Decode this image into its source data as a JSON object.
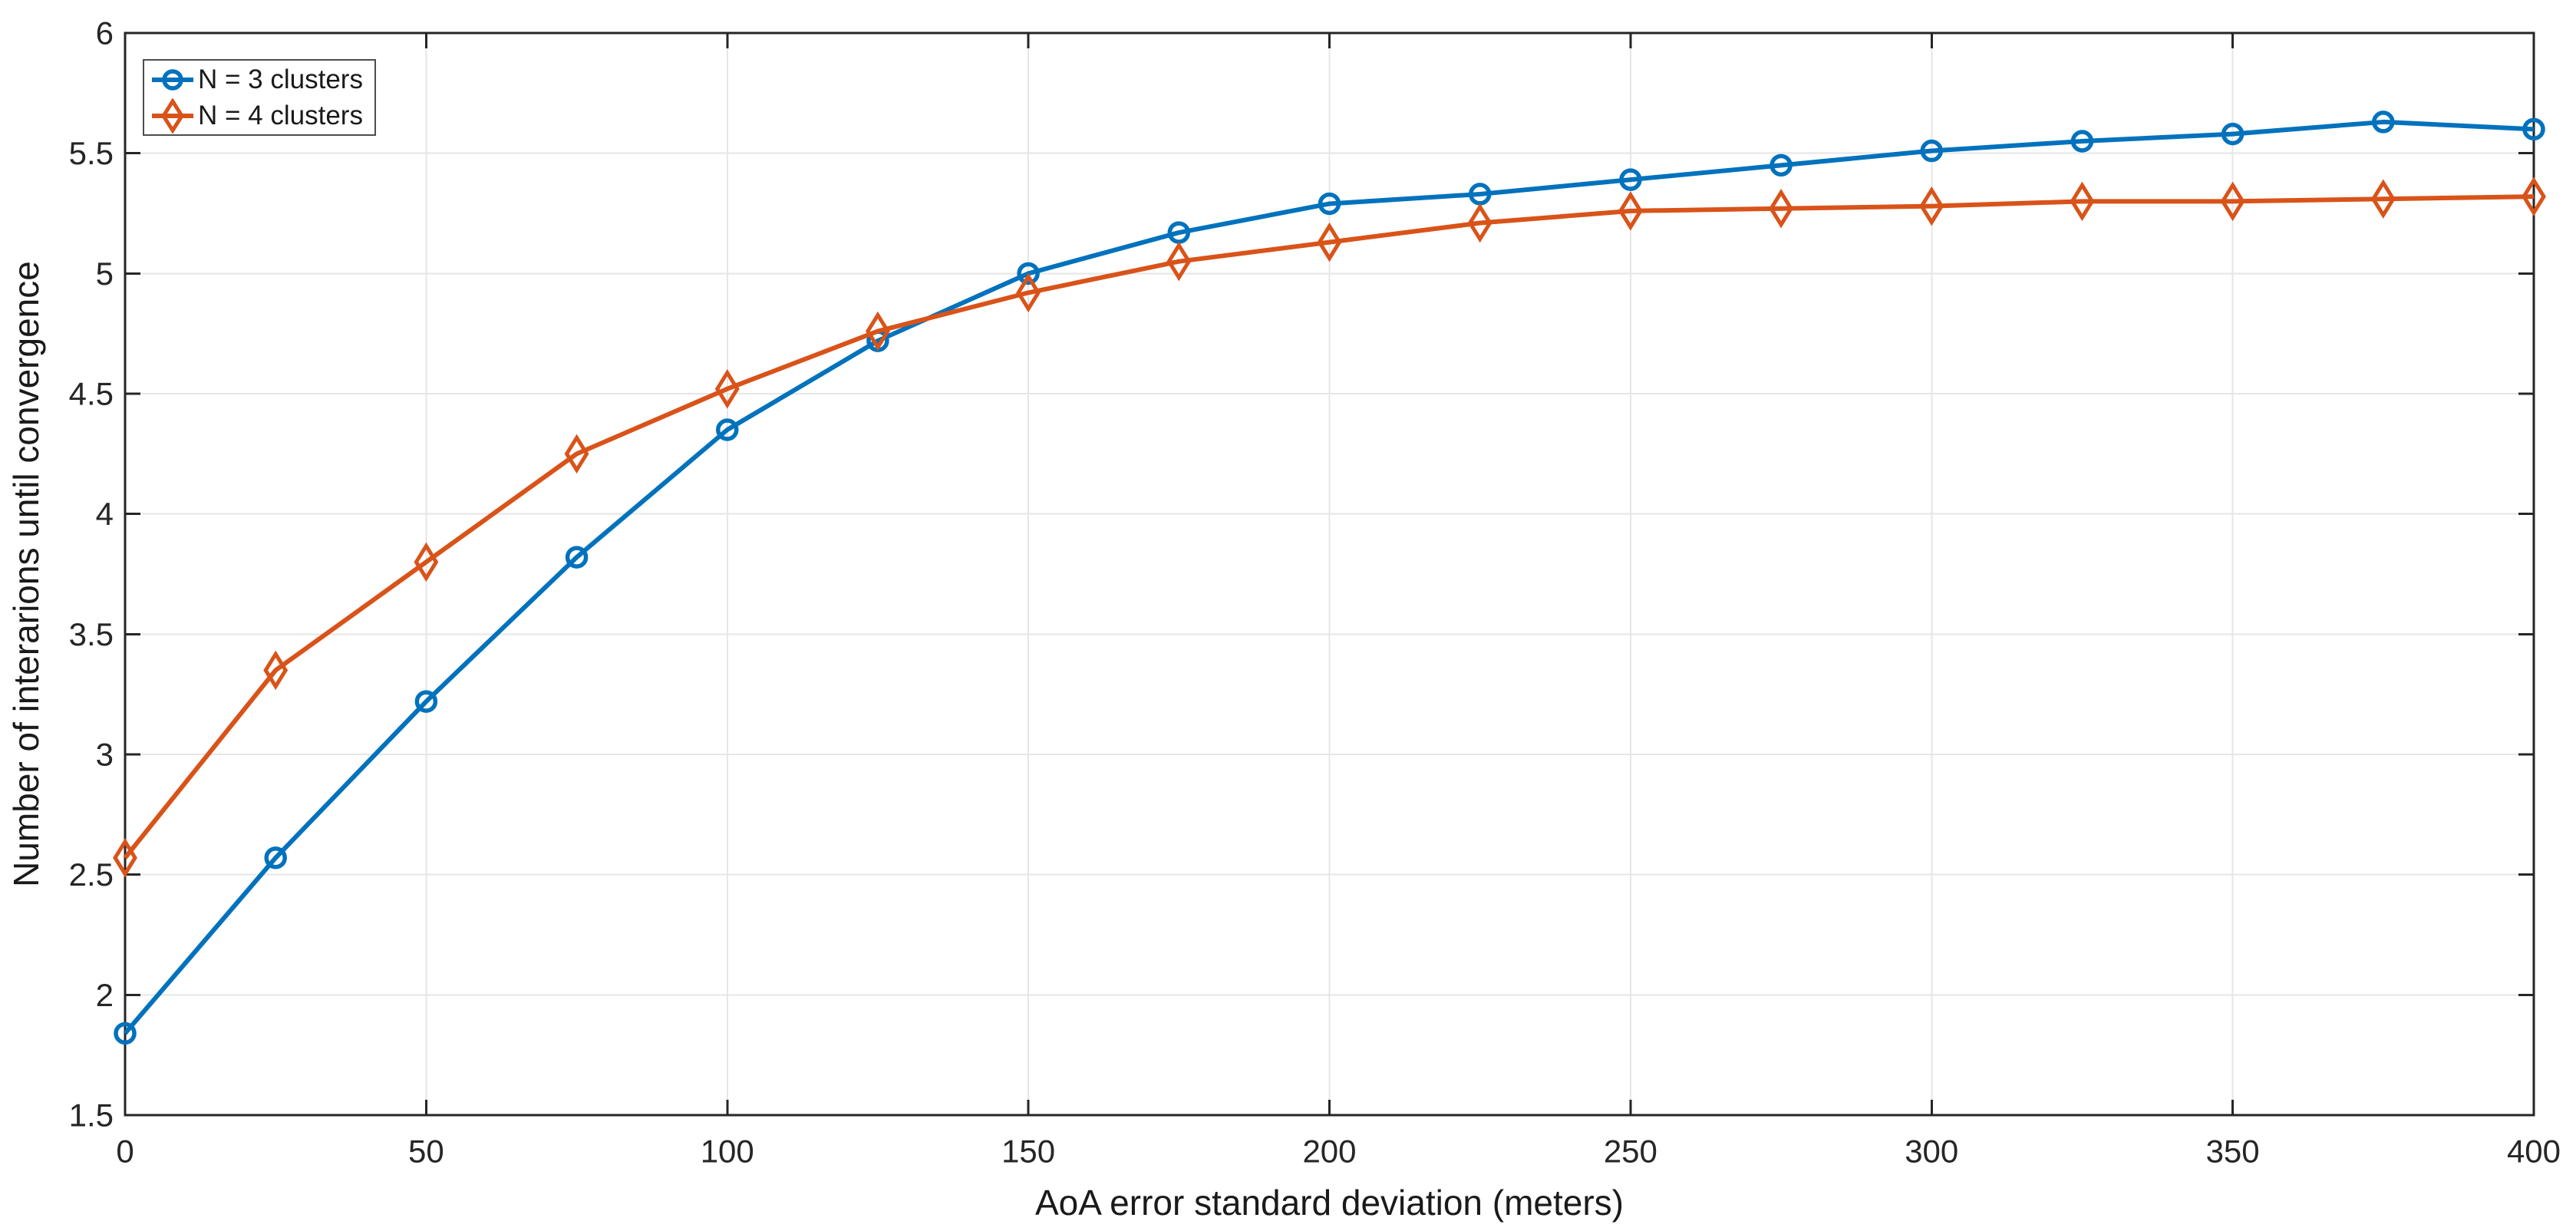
{
  "chart_data": {
    "type": "line",
    "title": "",
    "xlabel": "AoA error standard deviation (meters)",
    "ylabel": "Number of interarions until convergence",
    "xlim": [
      0,
      400
    ],
    "ylim": [
      1.5,
      6
    ],
    "grid": true,
    "legend_position": "top-left",
    "x_ticks": [
      0,
      50,
      100,
      150,
      200,
      250,
      300,
      350,
      400
    ],
    "x_tick_labels": [
      "0",
      "50",
      "100",
      "150",
      "200",
      "250",
      "300",
      "350",
      "400"
    ],
    "y_ticks": [
      1.5,
      2,
      2.5,
      3,
      3.5,
      4,
      4.5,
      5,
      5.5,
      6
    ],
    "y_tick_labels": [
      "1.5",
      "2",
      "2.5",
      "3",
      "3.5",
      "4",
      "4.5",
      "5",
      "5.5",
      "6"
    ],
    "x": [
      0,
      25,
      50,
      75,
      100,
      125,
      150,
      175,
      200,
      225,
      250,
      275,
      300,
      325,
      350,
      375,
      400
    ],
    "series": [
      {
        "name": "N = 3 clusters",
        "color": "#0072BD",
        "marker": "circle",
        "values": [
          1.84,
          2.57,
          3.22,
          3.82,
          4.35,
          4.72,
          5.0,
          5.17,
          5.29,
          5.33,
          5.39,
          5.45,
          5.51,
          5.55,
          5.58,
          5.63,
          5.6
        ]
      },
      {
        "name": "N = 4 clusters",
        "color": "#D95319",
        "marker": "diamond",
        "values": [
          2.57,
          3.35,
          3.8,
          4.25,
          4.52,
          4.76,
          4.92,
          5.05,
          5.13,
          5.21,
          5.26,
          5.27,
          5.28,
          5.3,
          5.3,
          5.31,
          5.32
        ]
      }
    ],
    "colors": {
      "background": "#ffffff",
      "axis": "#262626",
      "grid": "#e6e6e6",
      "tick_text": "#262626",
      "legend_border": "#4d4d4d"
    }
  }
}
